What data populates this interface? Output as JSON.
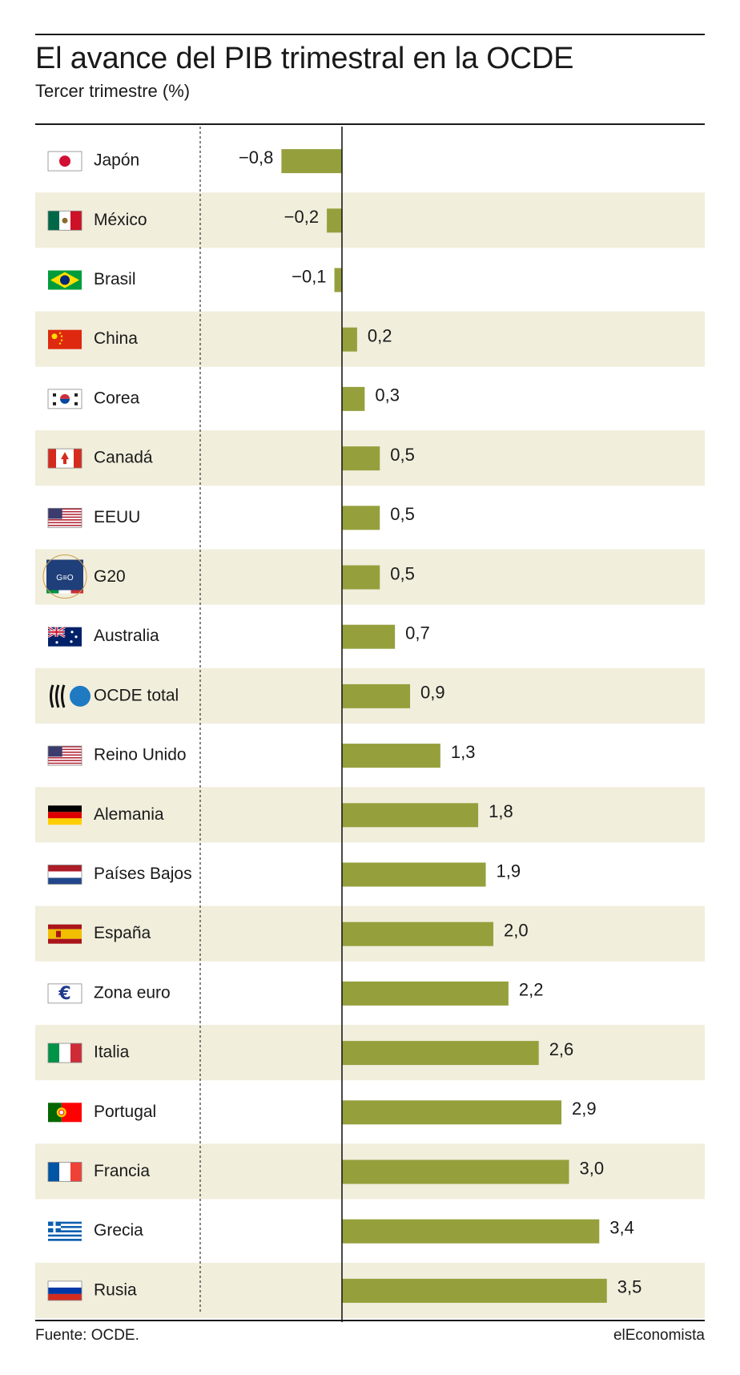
{
  "header": {
    "title": "El avance del PIB trimestral en la OCDE",
    "subtitle": "Tercer trimestre (%)"
  },
  "footer": {
    "source": "Fuente: OCDE.",
    "brand": "elEconomista"
  },
  "colors": {
    "bar": "#95a03c",
    "stripe": "#f1eedc",
    "axis": "#1a1a1a"
  },
  "chart_data": {
    "type": "bar",
    "orientation": "horizontal",
    "title": "El avance del PIB trimestral en la OCDE",
    "subtitle": "Tercer trimestre (%)",
    "xlim": [
      -1.0,
      3.8
    ],
    "categories": [
      "Japón",
      "México",
      "Brasil",
      "China",
      "Corea",
      "Canadá",
      "EEUU",
      "G20",
      "Australia",
      "OCDE total",
      "Reino Unido",
      "Alemania",
      "Países Bajos",
      "España",
      "Zona euro",
      "Italia",
      "Portugal",
      "Francia",
      "Grecia",
      "Rusia"
    ],
    "values": [
      -0.8,
      -0.2,
      -0.1,
      0.2,
      0.3,
      0.5,
      0.5,
      0.5,
      0.7,
      0.9,
      1.3,
      1.8,
      1.9,
      2.0,
      2.2,
      2.6,
      2.9,
      3.0,
      3.4,
      3.5
    ],
    "value_labels": [
      "−0,8",
      "−0,2",
      "−0,1",
      "0,2",
      "0,3",
      "0,5",
      "0,5",
      "0,5",
      "0,7",
      "0,9",
      "1,3",
      "1,8",
      "1,9",
      "2,0",
      "2,2",
      "2,6",
      "2,9",
      "3,0",
      "3,4",
      "3,5"
    ],
    "flags": [
      "japan-flag-icon",
      "mexico-flag-icon",
      "brazil-flag-icon",
      "china-flag-icon",
      "korea-flag-icon",
      "canada-flag-icon",
      "usa-flag-icon",
      "g20-logo-icon",
      "australia-flag-icon",
      "oecd-logo-icon",
      "uk-flag-icon",
      "germany-flag-icon",
      "netherlands-flag-icon",
      "spain-flag-icon",
      "euro-zone-icon",
      "italy-flag-icon",
      "portugal-flag-icon",
      "france-flag-icon",
      "greece-flag-icon",
      "russia-flag-icon"
    ],
    "g20_logo_text": "G≡O",
    "grid": false,
    "legend": "none"
  }
}
